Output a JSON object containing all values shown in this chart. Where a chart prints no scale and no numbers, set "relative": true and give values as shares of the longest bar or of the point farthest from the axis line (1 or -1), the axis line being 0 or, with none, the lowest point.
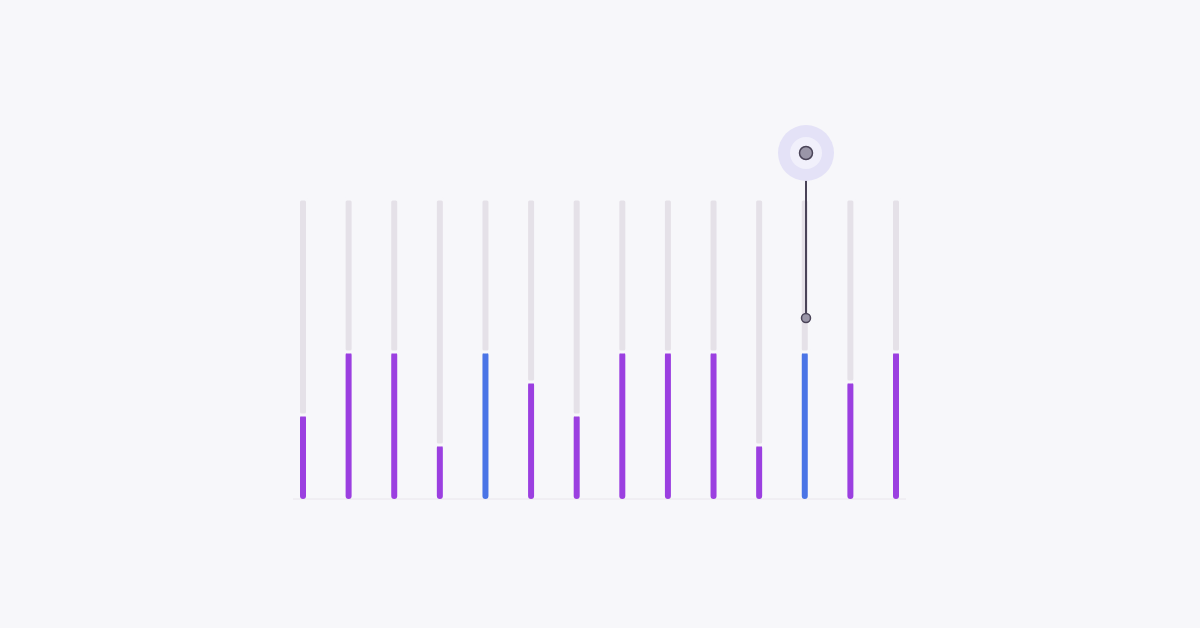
{
  "chart_data": {
    "type": "bar",
    "relative": true,
    "stacked": true,
    "categories": [
      null,
      null,
      null,
      null,
      null,
      null,
      null,
      null,
      null,
      null,
      null,
      null,
      null,
      null
    ],
    "series": [
      {
        "colors": [
          "#9b3fe0",
          "#9b3fe0",
          "#9b3fe0",
          "#9b3fe0",
          "#4a74e6",
          "#9b3fe0",
          "#9b3fe0",
          "#9b3fe0",
          "#9b3fe0",
          "#9b3fe0",
          "#9b3fe0",
          "#4a74e6",
          "#9b3fe0",
          "#9b3fe0"
        ],
        "values": [
          0.28,
          0.49,
          0.49,
          0.18,
          0.49,
          0.39,
          0.28,
          0.49,
          0.49,
          0.49,
          0.18,
          0.49,
          0.39,
          0.49
        ]
      },
      {
        "color": "#e5e1e8",
        "values": [
          0.72,
          0.51,
          0.51,
          0.82,
          0.51,
          0.61,
          0.72,
          0.51,
          0.51,
          0.51,
          0.82,
          0.51,
          0.61,
          0.51
        ]
      }
    ]
  }
}
